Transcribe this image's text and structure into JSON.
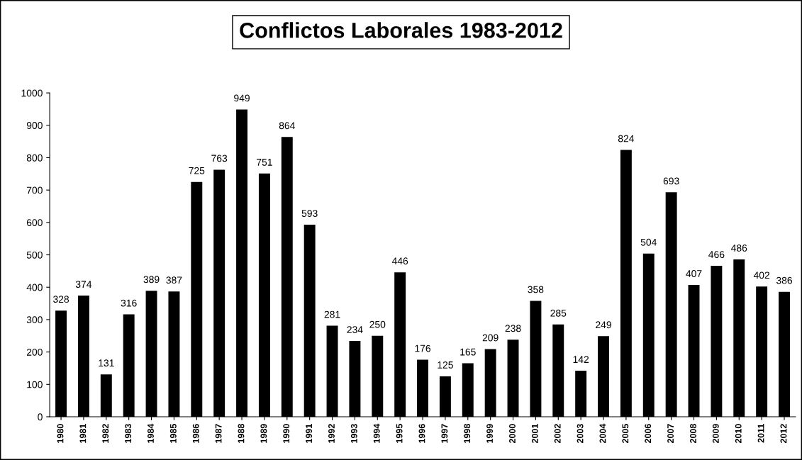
{
  "chart_data": {
    "type": "bar",
    "title": "Conflictos Laborales 1983-2012",
    "categories": [
      "1980",
      "1981",
      "1982",
      "1983",
      "1984",
      "1985",
      "1986",
      "1987",
      "1988",
      "1989",
      "1990",
      "1991",
      "1992",
      "1993",
      "1994",
      "1995",
      "1996",
      "1997",
      "1998",
      "1999",
      "2000",
      "2001",
      "2002",
      "2003",
      "2004",
      "2005",
      "2006",
      "2007",
      "2008",
      "2009",
      "2010",
      "2011",
      "2012"
    ],
    "values": [
      328,
      374,
      131,
      316,
      389,
      387,
      725,
      763,
      949,
      751,
      864,
      593,
      281,
      234,
      250,
      446,
      176,
      125,
      165,
      209,
      238,
      358,
      285,
      142,
      249,
      824,
      504,
      693,
      407,
      466,
      486,
      402,
      386
    ],
    "color": "#000000",
    "ylim": [
      0,
      1000
    ],
    "yticks": [
      0,
      100,
      200,
      300,
      400,
      500,
      600,
      700,
      800,
      900,
      1000
    ],
    "grid": false,
    "data_labels": true,
    "legend": false
  }
}
